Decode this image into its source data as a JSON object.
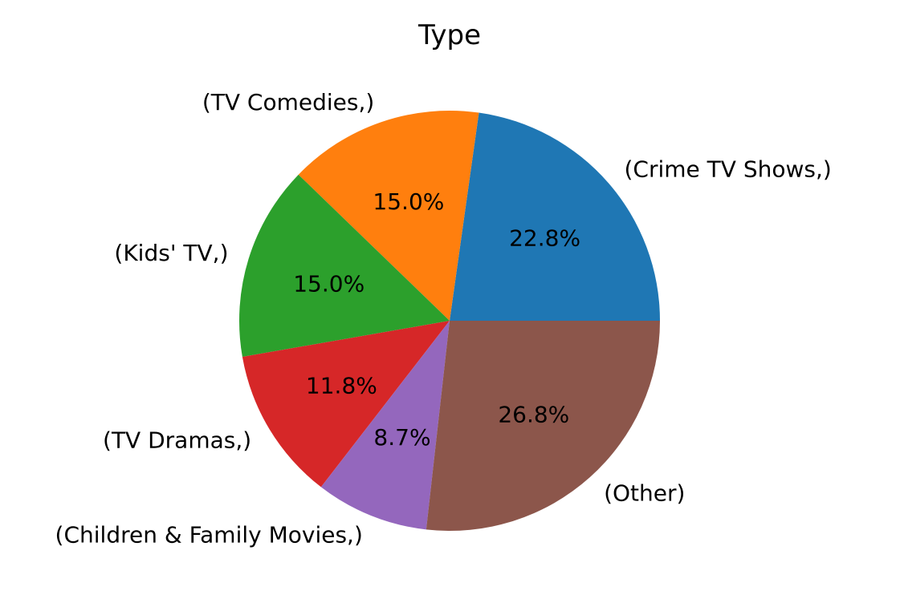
{
  "chart_data": {
    "type": "pie",
    "title": "Type",
    "slices": [
      {
        "label": "(Crime TV Shows,)",
        "value": 22.8,
        "pct_label": "22.8%",
        "color": "#1f77b4"
      },
      {
        "label": "(TV Comedies,)",
        "value": 15.0,
        "pct_label": "15.0%",
        "color": "#ff7f0e"
      },
      {
        "label": "(Kids' TV,)",
        "value": 15.0,
        "pct_label": "15.0%",
        "color": "#2ca02c"
      },
      {
        "label": "(TV Dramas,)",
        "value": 11.8,
        "pct_label": "11.8%",
        "color": "#d62728"
      },
      {
        "label": "(Children & Family Movies,)",
        "value": 8.7,
        "pct_label": "8.7%",
        "color": "#9467bd"
      },
      {
        "label": "(Other)",
        "value": 26.8,
        "pct_label": "26.8%",
        "color": "#8c564b"
      }
    ],
    "start_angle_deg": 0,
    "direction": "counterclockwise",
    "legend": "none"
  }
}
